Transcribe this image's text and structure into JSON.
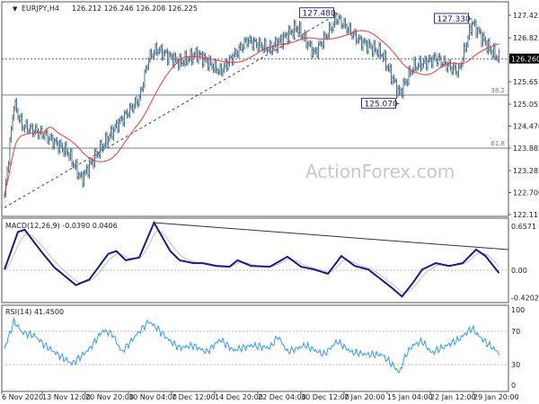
{
  "header": {
    "symbol": "EURJPY,H4",
    "ohlc": "126.212 126.246 126.208 126.225"
  },
  "watermark": "ActionForex.com",
  "colors": {
    "bars": "#52788f",
    "ma": "#ff3333",
    "macd": "#1a1a8c",
    "signal": "#c0c0c0",
    "rsi": "#3399ff",
    "current_price_box": "#000000"
  },
  "chart_data": [
    {
      "type": "ohlc",
      "title": "EURJPY,H4",
      "ylim": [
        122.115,
        127.425
      ],
      "y_ticks": [
        "127.425",
        "126.825",
        "125.655",
        "125.055",
        "124.470",
        "123.885",
        "123.285",
        "122.700",
        "122.115"
      ],
      "current_price": "126.260",
      "x_ticks": [
        {
          "bar": 0,
          "label": "6 Nov 2020"
        },
        {
          "bar": 30,
          "label": "13 Nov 12:00"
        },
        {
          "bar": 62,
          "label": "20 Nov 20:00"
        },
        {
          "bar": 94,
          "label": "30 Nov 04:00"
        },
        {
          "bar": 126,
          "label": "7 Dec 12:00"
        },
        {
          "bar": 158,
          "label": "14 Dec 20:00"
        },
        {
          "bar": 190,
          "label": "22 Dec 04:00"
        },
        {
          "bar": 222,
          "label": "30 Dec 12:00"
        },
        {
          "bar": 254,
          "label": "7 Jan 20:00"
        },
        {
          "bar": 286,
          "label": "15 Jan 04:00"
        },
        {
          "bar": 318,
          "label": "22 Jan 12:00"
        },
        {
          "bar": 350,
          "label": "29 Jan 20:00"
        }
      ],
      "close_keypoints": [
        [
          0,
          122.57
        ],
        [
          7,
          125.08
        ],
        [
          13,
          124.48
        ],
        [
          30,
          124.24
        ],
        [
          47,
          123.77
        ],
        [
          57,
          123.05
        ],
        [
          67,
          123.65
        ],
        [
          83,
          124.48
        ],
        [
          100,
          125.2
        ],
        [
          107,
          126.28
        ],
        [
          113,
          126.52
        ],
        [
          130,
          126.16
        ],
        [
          143,
          126.4
        ],
        [
          160,
          125.92
        ],
        [
          180,
          126.76
        ],
        [
          197,
          126.52
        ],
        [
          217,
          127.11
        ],
        [
          230,
          126.4
        ],
        [
          247,
          127.35
        ],
        [
          263,
          126.76
        ],
        [
          280,
          126.4
        ],
        [
          293,
          125.32
        ],
        [
          303,
          126.04
        ],
        [
          320,
          126.28
        ],
        [
          337,
          125.92
        ],
        [
          347,
          127.23
        ],
        [
          360,
          126.52
        ],
        [
          367,
          126.26
        ]
      ],
      "annotations": [
        {
          "label": "127.480",
          "bar": 247,
          "price": 127.48
        },
        {
          "label": "127.330",
          "bar": 347,
          "price": 127.33
        },
        {
          "label": "125.070",
          "bar": 293,
          "price": 125.07
        }
      ],
      "fib_levels": [
        {
          "label": "38.2",
          "price": 125.3
        },
        {
          "label": "61.8",
          "price": 123.885
        }
      ],
      "trendline": [
        [
          0,
          122.3
        ],
        [
          248,
          127.48
        ]
      ]
    },
    {
      "type": "line",
      "title": "MACD(12,26,9) -0.0390 0.0406",
      "ylim": [
        -0.4202,
        0.6571
      ],
      "y_ticks": [
        "0.6571",
        "0.00",
        "-0.4202"
      ],
      "macd_keypoints": [
        [
          0,
          0.01
        ],
        [
          10,
          0.54
        ],
        [
          15,
          0.57
        ],
        [
          27,
          0.27
        ],
        [
          37,
          0.04
        ],
        [
          53,
          -0.21
        ],
        [
          63,
          -0.13
        ],
        [
          77,
          0.23
        ],
        [
          83,
          0.27
        ],
        [
          90,
          0.14
        ],
        [
          100,
          0.18
        ],
        [
          111,
          0.67
        ],
        [
          123,
          0.27
        ],
        [
          130,
          0.14
        ],
        [
          140,
          0.1
        ],
        [
          147,
          0.1
        ],
        [
          157,
          0.06
        ],
        [
          167,
          0.05
        ],
        [
          173,
          0.14
        ],
        [
          183,
          0.06
        ],
        [
          197,
          0.05
        ],
        [
          210,
          0.19
        ],
        [
          220,
          0.05
        ],
        [
          230,
          0.01
        ],
        [
          240,
          -0.05
        ],
        [
          250,
          0.2
        ],
        [
          260,
          0.06
        ],
        [
          270,
          0.01
        ],
        [
          287,
          -0.24
        ],
        [
          295,
          -0.37
        ],
        [
          303,
          -0.18
        ],
        [
          310,
          0.01
        ],
        [
          320,
          0.1
        ],
        [
          330,
          0.06
        ],
        [
          340,
          0.1
        ],
        [
          350,
          0.29
        ],
        [
          357,
          0.2
        ],
        [
          367,
          -0.04
        ]
      ],
      "trendline": [
        [
          111,
          0.67
        ],
        [
          372,
          0.29
        ]
      ]
    },
    {
      "type": "line",
      "title": "RSI(14) 41.4500",
      "ylim": [
        0,
        100
      ],
      "y_ticks": [
        "100",
        "70",
        "30",
        "0"
      ],
      "rsi_keypoints": [
        [
          0,
          49
        ],
        [
          7,
          82
        ],
        [
          13,
          69
        ],
        [
          23,
          64
        ],
        [
          30,
          53
        ],
        [
          37,
          45
        ],
        [
          50,
          31
        ],
        [
          57,
          40
        ],
        [
          63,
          49
        ],
        [
          73,
          71
        ],
        [
          80,
          67
        ],
        [
          87,
          45
        ],
        [
          97,
          64
        ],
        [
          107,
          82
        ],
        [
          113,
          74
        ],
        [
          123,
          58
        ],
        [
          130,
          50
        ],
        [
          140,
          53
        ],
        [
          150,
          45
        ],
        [
          160,
          60
        ],
        [
          170,
          47
        ],
        [
          183,
          53
        ],
        [
          197,
          50
        ],
        [
          203,
          64
        ],
        [
          210,
          45
        ],
        [
          223,
          53
        ],
        [
          237,
          42
        ],
        [
          247,
          58
        ],
        [
          257,
          45
        ],
        [
          270,
          42
        ],
        [
          280,
          42
        ],
        [
          290,
          26
        ],
        [
          293,
          20
        ],
        [
          298,
          42
        ],
        [
          303,
          53
        ],
        [
          310,
          58
        ],
        [
          317,
          44
        ],
        [
          327,
          52
        ],
        [
          337,
          60
        ],
        [
          347,
          74
        ],
        [
          351,
          66
        ],
        [
          360,
          53
        ],
        [
          367,
          44
        ]
      ]
    }
  ]
}
